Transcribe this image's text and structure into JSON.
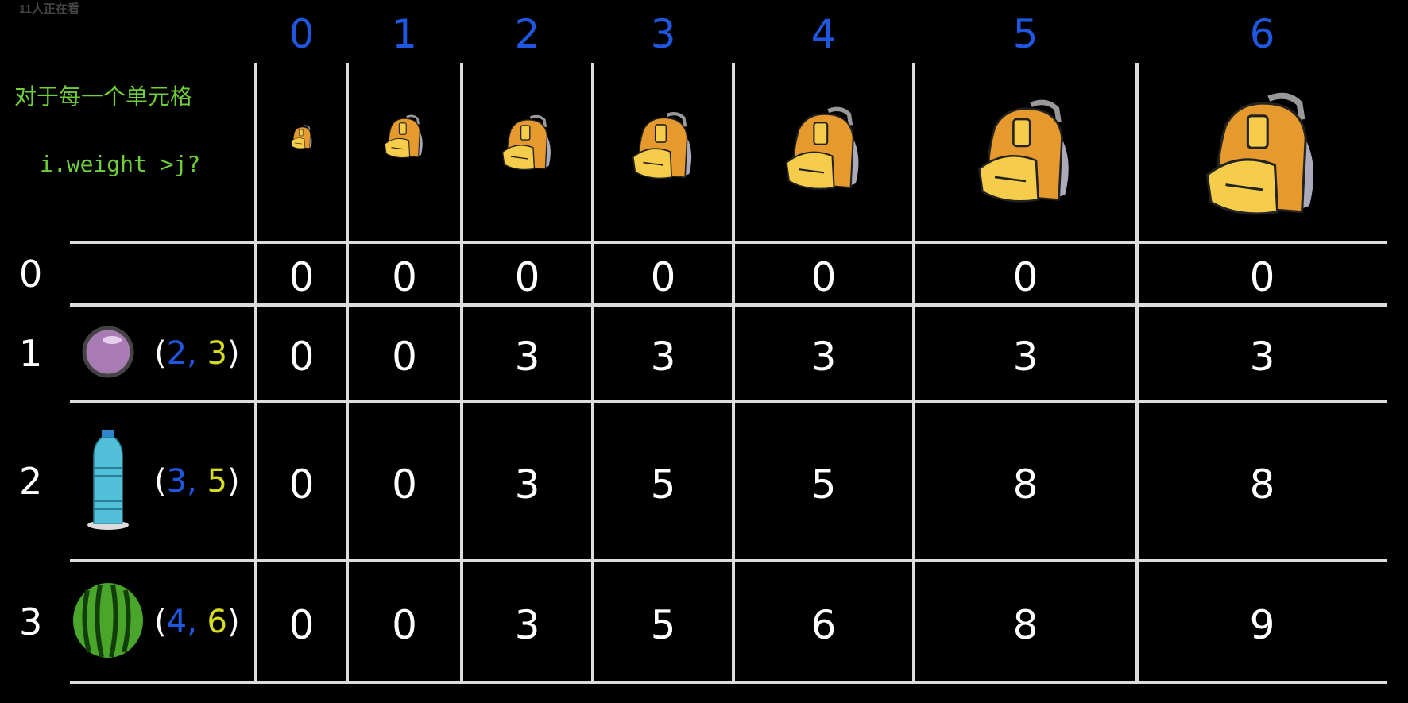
{
  "watermark": "11人正在看",
  "hint": {
    "line1": "对于每一个单元格",
    "line2": "i.weight >j?"
  },
  "capacities": [
    "0",
    "1",
    "2",
    "3",
    "4",
    "5",
    "6"
  ],
  "rows": [
    {
      "index": "0",
      "item": null,
      "weight": null,
      "value": null,
      "cells": [
        "0",
        "0",
        "0",
        "0",
        "0",
        "0",
        "0"
      ]
    },
    {
      "index": "1",
      "item": "ball-icon",
      "weight": "2",
      "value": "3",
      "cells": [
        "0",
        "0",
        "3",
        "3",
        "3",
        "3",
        "3"
      ]
    },
    {
      "index": "2",
      "item": "water-bottle-icon",
      "weight": "3",
      "value": "5",
      "cells": [
        "0",
        "0",
        "3",
        "5",
        "5",
        "8",
        "8"
      ]
    },
    {
      "index": "3",
      "item": "watermelon-icon",
      "weight": "4",
      "value": "6",
      "cells": [
        "0",
        "0",
        "3",
        "5",
        "6",
        "8",
        "9"
      ]
    }
  ],
  "colors": {
    "weight": "#1f57e0",
    "value": "#d6dc20",
    "hint": "#6fcf3a",
    "grid": "#dddddd"
  }
}
